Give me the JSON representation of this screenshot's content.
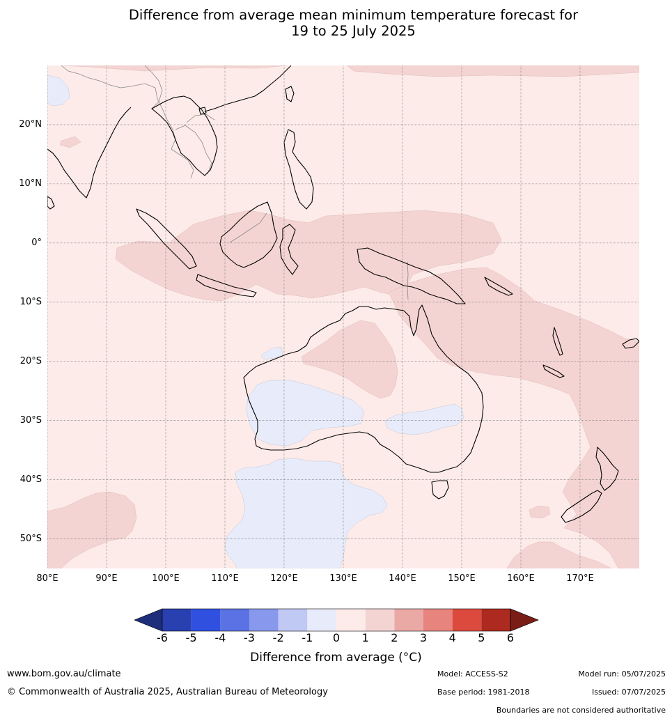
{
  "title": {
    "line1": "Difference from average mean minimum temperature forecast for",
    "line2": "19 to 25 July 2025"
  },
  "map": {
    "lon_range": [
      80,
      180
    ],
    "lat_range": [
      -55,
      30
    ],
    "lat_labels": [
      {
        "value": 20,
        "text": "20°N"
      },
      {
        "value": 10,
        "text": "10°N"
      },
      {
        "value": 0,
        "text": "0°"
      },
      {
        "value": -10,
        "text": "10°S"
      },
      {
        "value": -20,
        "text": "20°S"
      },
      {
        "value": -30,
        "text": "30°S"
      },
      {
        "value": -40,
        "text": "40°S"
      },
      {
        "value": -50,
        "text": "50°S"
      }
    ],
    "lon_labels": [
      {
        "value": 80,
        "text": "80°E"
      },
      {
        "value": 90,
        "text": "90°E"
      },
      {
        "value": 100,
        "text": "100°E"
      },
      {
        "value": 110,
        "text": "110°E"
      },
      {
        "value": 120,
        "text": "120°E"
      },
      {
        "value": 130,
        "text": "130°E"
      },
      {
        "value": 140,
        "text": "140°E"
      },
      {
        "value": 150,
        "text": "150°E"
      },
      {
        "value": 160,
        "text": "160°E"
      },
      {
        "value": 170,
        "text": "170°E"
      }
    ],
    "background_class": "0 to 1",
    "colors": {
      "cool_0_to_1": "#e8ecfa",
      "warm_0_to_1": "#fcebe9",
      "warm_1_to_2": "#f4d4d3",
      "coastline": "#000000",
      "borders": "#888888",
      "gridlines": "#777777"
    }
  },
  "colorbar": {
    "label": "Difference from average (°C)",
    "ticks": [
      "-6",
      "-5",
      "-4",
      "-3",
      "-2",
      "-1",
      "0",
      "1",
      "2",
      "3",
      "4",
      "5",
      "6"
    ],
    "under_color": "#1f2e7a",
    "over_color": "#7a1d16",
    "colors": [
      "#2840b0",
      "#3050e0",
      "#5a72e4",
      "#8898ec",
      "#c0c8f4",
      "#e8ecfa",
      "#fcebe9",
      "#f4d4d3",
      "#eba9a6",
      "#e8847e",
      "#dc4a3e",
      "#ac2a20"
    ]
  },
  "footer": {
    "site": "www.bom.gov.au/climate",
    "copyright": "© Commonwealth of Australia 2025, Australian Bureau of Meteorology",
    "model": "Model: ACCESS-S2",
    "base_period": "Base period: 1981-2018",
    "model_run": "Model run: 05/07/2025",
    "issued": "Issued: 07/07/2025",
    "boundaries": "Boundaries are not considered authoritative"
  }
}
